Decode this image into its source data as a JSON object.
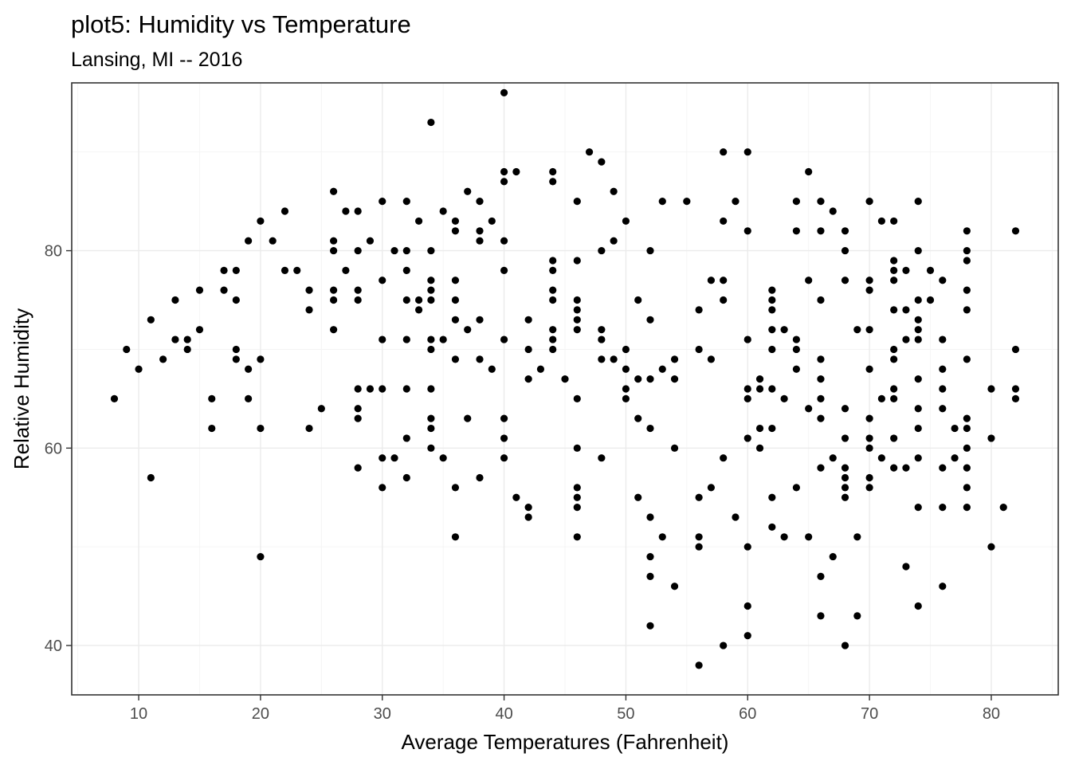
{
  "chart_data": {
    "type": "scatter",
    "title": "plot5: Humidity vs Temperature",
    "subtitle": "Lansing, MI -- 2016",
    "xlabel": "Average Temperatures (Fahrenheit)",
    "ylabel": "Relative Humidity",
    "xlim": [
      4.5,
      85.5
    ],
    "ylim": [
      35,
      97
    ],
    "x_ticks": [
      10,
      20,
      30,
      40,
      50,
      60,
      70,
      80
    ],
    "y_ticks": [
      40,
      60,
      80
    ],
    "x_tick_labels": [
      "10",
      "20",
      "30",
      "40",
      "50",
      "60",
      "70",
      "80"
    ],
    "y_tick_labels": [
      "40",
      "60",
      "80"
    ],
    "grid": true,
    "points": [
      [
        8,
        65
      ],
      [
        9,
        70
      ],
      [
        10,
        68
      ],
      [
        11,
        73
      ],
      [
        11,
        57
      ],
      [
        12,
        69
      ],
      [
        13,
        75
      ],
      [
        13,
        71
      ],
      [
        14,
        71
      ],
      [
        14,
        70
      ],
      [
        15,
        76
      ],
      [
        15,
        72
      ],
      [
        16,
        65
      ],
      [
        16,
        62
      ],
      [
        17,
        78
      ],
      [
        17,
        76
      ],
      [
        18,
        78
      ],
      [
        18,
        75
      ],
      [
        18,
        70
      ],
      [
        18,
        69
      ],
      [
        19,
        81
      ],
      [
        19,
        68
      ],
      [
        19,
        65
      ],
      [
        20,
        83
      ],
      [
        20,
        69
      ],
      [
        20,
        62
      ],
      [
        20,
        49
      ],
      [
        21,
        81
      ],
      [
        22,
        84
      ],
      [
        22,
        78
      ],
      [
        23,
        78
      ],
      [
        24,
        76
      ],
      [
        24,
        74
      ],
      [
        24,
        62
      ],
      [
        25,
        64
      ],
      [
        26,
        86
      ],
      [
        26,
        81
      ],
      [
        26,
        80
      ],
      [
        26,
        76
      ],
      [
        26,
        75
      ],
      [
        26,
        72
      ],
      [
        27,
        84
      ],
      [
        27,
        78
      ],
      [
        28,
        84
      ],
      [
        28,
        80
      ],
      [
        28,
        76
      ],
      [
        28,
        75
      ],
      [
        28,
        66
      ],
      [
        28,
        64
      ],
      [
        28,
        63
      ],
      [
        28,
        58
      ],
      [
        29,
        81
      ],
      [
        29,
        66
      ],
      [
        30,
        85
      ],
      [
        30,
        77
      ],
      [
        30,
        71
      ],
      [
        30,
        66
      ],
      [
        30,
        59
      ],
      [
        30,
        56
      ],
      [
        31,
        80
      ],
      [
        31,
        59
      ],
      [
        32,
        85
      ],
      [
        32,
        80
      ],
      [
        32,
        78
      ],
      [
        32,
        75
      ],
      [
        32,
        71
      ],
      [
        32,
        66
      ],
      [
        32,
        61
      ],
      [
        32,
        57
      ],
      [
        33,
        83
      ],
      [
        33,
        75
      ],
      [
        33,
        74
      ],
      [
        34,
        93
      ],
      [
        34,
        80
      ],
      [
        34,
        77
      ],
      [
        34,
        76
      ],
      [
        34,
        75
      ],
      [
        34,
        71
      ],
      [
        34,
        70
      ],
      [
        34,
        66
      ],
      [
        34,
        63
      ],
      [
        34,
        62
      ],
      [
        34,
        60
      ],
      [
        35,
        84
      ],
      [
        35,
        71
      ],
      [
        35,
        59
      ],
      [
        36,
        83
      ],
      [
        36,
        82
      ],
      [
        36,
        77
      ],
      [
        36,
        75
      ],
      [
        36,
        73
      ],
      [
        36,
        69
      ],
      [
        36,
        56
      ],
      [
        36,
        51
      ],
      [
        37,
        86
      ],
      [
        37,
        72
      ],
      [
        37,
        63
      ],
      [
        38,
        85
      ],
      [
        38,
        82
      ],
      [
        38,
        81
      ],
      [
        38,
        73
      ],
      [
        38,
        69
      ],
      [
        38,
        57
      ],
      [
        39,
        83
      ],
      [
        39,
        68
      ],
      [
        40,
        96
      ],
      [
        40,
        88
      ],
      [
        40,
        87
      ],
      [
        40,
        81
      ],
      [
        40,
        78
      ],
      [
        40,
        71
      ],
      [
        40,
        63
      ],
      [
        40,
        61
      ],
      [
        40,
        59
      ],
      [
        41,
        88
      ],
      [
        41,
        55
      ],
      [
        42,
        73
      ],
      [
        42,
        70
      ],
      [
        42,
        67
      ],
      [
        42,
        54
      ],
      [
        42,
        53
      ],
      [
        43,
        68
      ],
      [
        44,
        88
      ],
      [
        44,
        87
      ],
      [
        44,
        79
      ],
      [
        44,
        78
      ],
      [
        44,
        76
      ],
      [
        44,
        75
      ],
      [
        44,
        72
      ],
      [
        44,
        71
      ],
      [
        44,
        70
      ],
      [
        45,
        67
      ],
      [
        46,
        85
      ],
      [
        46,
        79
      ],
      [
        46,
        75
      ],
      [
        46,
        74
      ],
      [
        46,
        73
      ],
      [
        46,
        72
      ],
      [
        46,
        65
      ],
      [
        46,
        60
      ],
      [
        46,
        56
      ],
      [
        46,
        55
      ],
      [
        46,
        54
      ],
      [
        46,
        51
      ],
      [
        47,
        90
      ],
      [
        48,
        89
      ],
      [
        48,
        80
      ],
      [
        48,
        72
      ],
      [
        48,
        71
      ],
      [
        48,
        69
      ],
      [
        48,
        59
      ],
      [
        49,
        86
      ],
      [
        49,
        81
      ],
      [
        49,
        69
      ],
      [
        50,
        83
      ],
      [
        50,
        70
      ],
      [
        50,
        68
      ],
      [
        50,
        66
      ],
      [
        50,
        65
      ],
      [
        51,
        75
      ],
      [
        51,
        67
      ],
      [
        51,
        63
      ],
      [
        51,
        55
      ],
      [
        52,
        80
      ],
      [
        52,
        73
      ],
      [
        52,
        67
      ],
      [
        52,
        62
      ],
      [
        52,
        53
      ],
      [
        52,
        49
      ],
      [
        52,
        47
      ],
      [
        52,
        42
      ],
      [
        53,
        85
      ],
      [
        53,
        68
      ],
      [
        53,
        51
      ],
      [
        54,
        69
      ],
      [
        54,
        67
      ],
      [
        54,
        60
      ],
      [
        54,
        46
      ],
      [
        55,
        85
      ],
      [
        56,
        74
      ],
      [
        56,
        70
      ],
      [
        56,
        55
      ],
      [
        56,
        51
      ],
      [
        56,
        50
      ],
      [
        56,
        38
      ],
      [
        57,
        77
      ],
      [
        57,
        69
      ],
      [
        57,
        56
      ],
      [
        58,
        90
      ],
      [
        58,
        83
      ],
      [
        58,
        77
      ],
      [
        58,
        75
      ],
      [
        58,
        59
      ],
      [
        58,
        40
      ],
      [
        59,
        85
      ],
      [
        59,
        53
      ],
      [
        60,
        90
      ],
      [
        60,
        82
      ],
      [
        60,
        71
      ],
      [
        60,
        66
      ],
      [
        60,
        65
      ],
      [
        60,
        61
      ],
      [
        60,
        50
      ],
      [
        60,
        44
      ],
      [
        60,
        41
      ],
      [
        61,
        67
      ],
      [
        61,
        66
      ],
      [
        61,
        62
      ],
      [
        61,
        60
      ],
      [
        62,
        76
      ],
      [
        62,
        75
      ],
      [
        62,
        74
      ],
      [
        62,
        72
      ],
      [
        62,
        70
      ],
      [
        62,
        66
      ],
      [
        62,
        62
      ],
      [
        62,
        55
      ],
      [
        62,
        52
      ],
      [
        63,
        72
      ],
      [
        63,
        65
      ],
      [
        63,
        51
      ],
      [
        64,
        85
      ],
      [
        64,
        82
      ],
      [
        64,
        71
      ],
      [
        64,
        70
      ],
      [
        64,
        68
      ],
      [
        64,
        56
      ],
      [
        65,
        88
      ],
      [
        65,
        77
      ],
      [
        65,
        64
      ],
      [
        65,
        51
      ],
      [
        66,
        85
      ],
      [
        66,
        82
      ],
      [
        66,
        75
      ],
      [
        66,
        69
      ],
      [
        66,
        67
      ],
      [
        66,
        65
      ],
      [
        66,
        63
      ],
      [
        66,
        58
      ],
      [
        66,
        47
      ],
      [
        66,
        43
      ],
      [
        67,
        84
      ],
      [
        67,
        59
      ],
      [
        67,
        49
      ],
      [
        68,
        82
      ],
      [
        68,
        80
      ],
      [
        68,
        77
      ],
      [
        68,
        64
      ],
      [
        68,
        61
      ],
      [
        68,
        58
      ],
      [
        68,
        57
      ],
      [
        68,
        56
      ],
      [
        68,
        55
      ],
      [
        68,
        40
      ],
      [
        69,
        72
      ],
      [
        69,
        51
      ],
      [
        69,
        43
      ],
      [
        70,
        85
      ],
      [
        70,
        77
      ],
      [
        70,
        76
      ],
      [
        70,
        72
      ],
      [
        70,
        68
      ],
      [
        70,
        63
      ],
      [
        70,
        61
      ],
      [
        70,
        60
      ],
      [
        70,
        57
      ],
      [
        70,
        56
      ],
      [
        71,
        83
      ],
      [
        71,
        65
      ],
      [
        71,
        59
      ],
      [
        72,
        83
      ],
      [
        72,
        79
      ],
      [
        72,
        78
      ],
      [
        72,
        77
      ],
      [
        72,
        74
      ],
      [
        72,
        70
      ],
      [
        72,
        69
      ],
      [
        72,
        66
      ],
      [
        72,
        65
      ],
      [
        72,
        61
      ],
      [
        72,
        58
      ],
      [
        73,
        78
      ],
      [
        73,
        74
      ],
      [
        73,
        71
      ],
      [
        73,
        58
      ],
      [
        73,
        48
      ],
      [
        74,
        85
      ],
      [
        74,
        80
      ],
      [
        74,
        75
      ],
      [
        74,
        73
      ],
      [
        74,
        72
      ],
      [
        74,
        71
      ],
      [
        74,
        67
      ],
      [
        74,
        64
      ],
      [
        74,
        62
      ],
      [
        74,
        59
      ],
      [
        74,
        54
      ],
      [
        74,
        44
      ],
      [
        75,
        78
      ],
      [
        75,
        75
      ],
      [
        76,
        77
      ],
      [
        76,
        71
      ],
      [
        76,
        68
      ],
      [
        76,
        66
      ],
      [
        76,
        64
      ],
      [
        76,
        58
      ],
      [
        76,
        54
      ],
      [
        76,
        46
      ],
      [
        77,
        62
      ],
      [
        77,
        59
      ],
      [
        78,
        82
      ],
      [
        78,
        80
      ],
      [
        78,
        79
      ],
      [
        78,
        76
      ],
      [
        78,
        74
      ],
      [
        78,
        69
      ],
      [
        78,
        63
      ],
      [
        78,
        62
      ],
      [
        78,
        60
      ],
      [
        78,
        58
      ],
      [
        78,
        56
      ],
      [
        78,
        54
      ],
      [
        80,
        66
      ],
      [
        80,
        61
      ],
      [
        80,
        50
      ],
      [
        81,
        54
      ],
      [
        82,
        82
      ],
      [
        82,
        70
      ],
      [
        82,
        66
      ],
      [
        82,
        65
      ]
    ]
  }
}
